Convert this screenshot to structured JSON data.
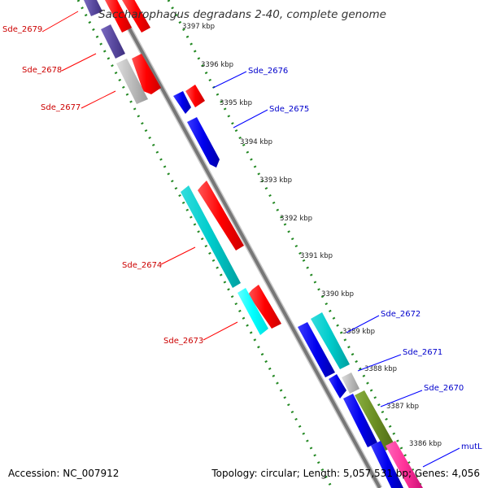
{
  "title": "Saccharophagus degradans 2-40, complete genome",
  "footer": {
    "accession": "Accession: NC_007912",
    "topology": "Topology: circular; Length: 5,057,531 bp; Genes: 4,056"
  },
  "scale_labels": [
    "3397 kbp",
    "3396 kbp",
    "3395 kbp",
    "3394 kbp",
    "3393 kbp",
    "3392 kbp",
    "3391 kbp",
    "3390 kbp",
    "3389 kbp",
    "3388 kbp",
    "3387 kbp",
    "3386 kbp"
  ],
  "gene_labels_left": [
    "Sde_2679",
    "Sde_2678",
    "Sde_2677",
    "Sde_2674",
    "Sde_2673"
  ],
  "gene_labels_right": [
    "Sde_2676",
    "Sde_2675",
    "Sde_2672",
    "Sde_2671",
    "Sde_2670",
    "mutL"
  ],
  "colors": {
    "forward_cds": "#ff0000",
    "reverse_cds": "#0000ee",
    "cyan_feature": "#00cccc",
    "grey_feature": "#bbbbbb",
    "purple_feature": "#5a4aa0",
    "olive_feature": "#6b8e23",
    "pink_feature": "#ff3399",
    "backbone": "#888888",
    "dotted_track": "#228822",
    "forward_label": "#cc0000",
    "reverse_label": "#0000cc"
  }
}
